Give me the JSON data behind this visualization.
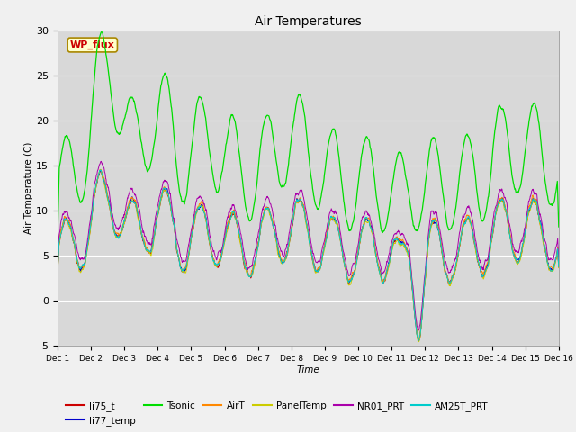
{
  "title": "Air Temperatures",
  "xlabel": "Time",
  "ylabel": "Air Temperature (C)",
  "ylim": [
    -5,
    30
  ],
  "xlim": [
    0,
    15
  ],
  "xtick_labels": [
    "Dec 1",
    "Dec 2",
    "Dec 3",
    "Dec 4",
    "Dec 5",
    "Dec 6",
    "Dec 7",
    "Dec 8",
    "Dec 9",
    "Dec 10",
    "Dec 11",
    "Dec 12",
    "Dec 13",
    "Dec 14",
    "Dec 15",
    "Dec 16"
  ],
  "ytick_labels": [
    "-5",
    "0",
    "5",
    "10",
    "15",
    "20",
    "25",
    "30"
  ],
  "ytick_vals": [
    -5,
    0,
    5,
    10,
    15,
    20,
    25,
    30
  ],
  "series_colors": {
    "li75_t": "#cc0000",
    "li77_temp": "#0000cc",
    "Tsonic": "#00dd00",
    "AirT": "#ff8800",
    "PanelTemp": "#cccc00",
    "NR01_PRT": "#aa00aa",
    "AM25T_PRT": "#00cccc"
  },
  "annotation_text": "WP_flux",
  "annotation_color": "#cc0000",
  "annotation_bg": "#ffffcc",
  "annotation_border": "#aa8800",
  "plot_bg": "#d8d8d8",
  "fig_bg": "#f0f0f0"
}
